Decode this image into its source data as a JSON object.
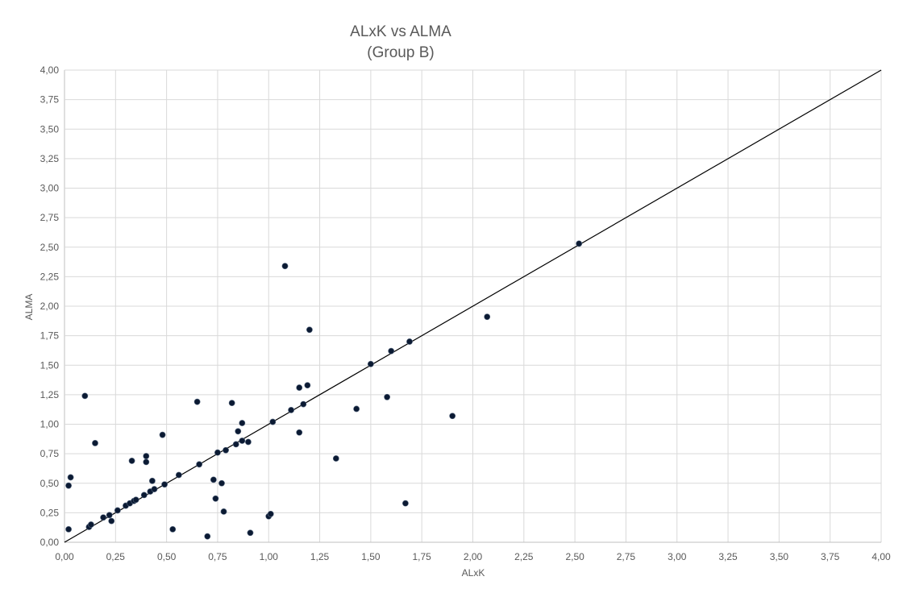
{
  "chart_data": {
    "type": "scatter",
    "title": "ALxK vs ALMA",
    "subtitle": "(Group B)",
    "xlabel": "ALxK",
    "ylabel": "ALMA",
    "xlim": [
      0,
      4
    ],
    "ylim": [
      0,
      4
    ],
    "x_ticks": [
      "0,00",
      "0,25",
      "0,50",
      "0,75",
      "1,00",
      "1,25",
      "1,50",
      "1,75",
      "2,00",
      "2,25",
      "2,50",
      "2,75",
      "3,00",
      "3,25",
      "3,50",
      "3,75",
      "4,00"
    ],
    "y_ticks": [
      "0,00",
      "0,25",
      "0,50",
      "0,75",
      "1,00",
      "1,25",
      "1,50",
      "1,75",
      "2,00",
      "2,25",
      "2,50",
      "2,75",
      "3,00",
      "3,25",
      "3,50",
      "3,75",
      "4,00"
    ],
    "grid": true,
    "reference_line": {
      "from": [
        0,
        0
      ],
      "to": [
        4,
        4
      ]
    },
    "colors": {
      "point": "#0b1a33",
      "line": "#000000",
      "grid": "#d9d9d9",
      "text": "#595959"
    },
    "points": [
      [
        0.02,
        0.48
      ],
      [
        0.03,
        0.55
      ],
      [
        0.02,
        0.11
      ],
      [
        0.1,
        1.24
      ],
      [
        0.12,
        0.13
      ],
      [
        0.13,
        0.15
      ],
      [
        0.15,
        0.84
      ],
      [
        0.19,
        0.21
      ],
      [
        0.22,
        0.23
      ],
      [
        0.23,
        0.18
      ],
      [
        0.26,
        0.27
      ],
      [
        0.3,
        0.31
      ],
      [
        0.32,
        0.33
      ],
      [
        0.33,
        0.69
      ],
      [
        0.34,
        0.35
      ],
      [
        0.35,
        0.36
      ],
      [
        0.39,
        0.4
      ],
      [
        0.4,
        0.68
      ],
      [
        0.4,
        0.73
      ],
      [
        0.42,
        0.43
      ],
      [
        0.43,
        0.52
      ],
      [
        0.44,
        0.45
      ],
      [
        0.48,
        0.91
      ],
      [
        0.49,
        0.49
      ],
      [
        0.53,
        0.11
      ],
      [
        0.56,
        0.57
      ],
      [
        0.65,
        1.19
      ],
      [
        0.66,
        0.66
      ],
      [
        0.7,
        0.05
      ],
      [
        0.73,
        0.53
      ],
      [
        0.74,
        0.37
      ],
      [
        0.75,
        0.76
      ],
      [
        0.77,
        0.5
      ],
      [
        0.78,
        0.26
      ],
      [
        0.79,
        0.78
      ],
      [
        0.82,
        1.18
      ],
      [
        0.84,
        0.83
      ],
      [
        0.85,
        0.94
      ],
      [
        0.87,
        0.86
      ],
      [
        0.87,
        1.01
      ],
      [
        0.9,
        0.85
      ],
      [
        0.91,
        0.08
      ],
      [
        1.0,
        0.22
      ],
      [
        1.01,
        0.24
      ],
      [
        1.02,
        1.02
      ],
      [
        1.08,
        2.34
      ],
      [
        1.11,
        1.12
      ],
      [
        1.15,
        1.31
      ],
      [
        1.15,
        0.93
      ],
      [
        1.17,
        1.17
      ],
      [
        1.19,
        1.33
      ],
      [
        1.2,
        1.8
      ],
      [
        1.33,
        0.71
      ],
      [
        1.43,
        1.13
      ],
      [
        1.5,
        1.51
      ],
      [
        1.58,
        1.23
      ],
      [
        1.6,
        1.62
      ],
      [
        1.67,
        0.33
      ],
      [
        1.69,
        1.7
      ],
      [
        1.9,
        1.07
      ],
      [
        2.07,
        1.91
      ],
      [
        2.52,
        2.53
      ]
    ]
  }
}
